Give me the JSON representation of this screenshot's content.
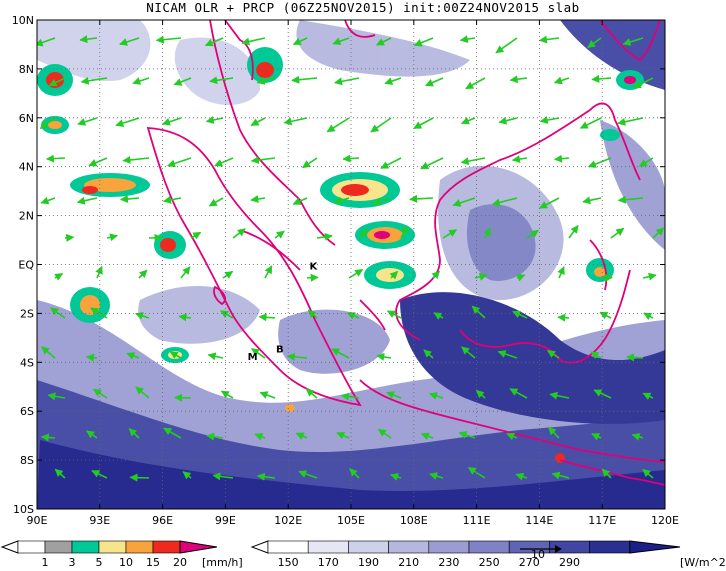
{
  "title": "NICAM OLR + PRCP (06Z25NOV2015) init:00Z24NOV2015 slab",
  "map": {
    "lon_min": 90,
    "lon_max": 120,
    "lat_min": -10,
    "lat_max": 10,
    "lon_ticks": [
      "90E",
      "93E",
      "96E",
      "99E",
      "102E",
      "105E",
      "108E",
      "111E",
      "114E",
      "117E",
      "120E"
    ],
    "lat_ticks": [
      "10N",
      "8N",
      "6N",
      "4N",
      "2N",
      "EQ",
      "2S",
      "4S",
      "6S",
      "8S",
      "10S"
    ],
    "point_labels": [
      {
        "text": "K",
        "lon": 103.2,
        "lat": -0.2
      },
      {
        "text": "M",
        "lon": 100.3,
        "lat": -3.9
      },
      {
        "text": "B",
        "lon": 101.6,
        "lat": -3.6
      }
    ],
    "colors": {
      "coast": "#e0007a",
      "arrow": "#22cc22",
      "olr_dark": "#1c1f8a",
      "olr_light": "#d8d9f0"
    }
  },
  "prcp_bar": {
    "labels": [
      "1",
      "3",
      "5",
      "10",
      "15",
      "20"
    ],
    "unit": "[mm/h]",
    "colors": [
      "#ffffff",
      "#a0a0a0",
      "#00c896",
      "#f6e58d",
      "#f8a33c",
      "#ee2a1f",
      "#e0007a"
    ]
  },
  "olr_bar": {
    "labels": [
      "150",
      "170",
      "190",
      "210",
      "230",
      "250",
      "270",
      "290"
    ],
    "unit": "[W/m^2]",
    "colors": [
      "#ffffff",
      "#e6e6f4",
      "#cfd0ea",
      "#b5b7df",
      "#9b9dd2",
      "#7f82c4",
      "#6064b4",
      "#4046a2",
      "#2a2f92",
      "#1c1f8a"
    ],
    "ref_vector_label": "10"
  }
}
